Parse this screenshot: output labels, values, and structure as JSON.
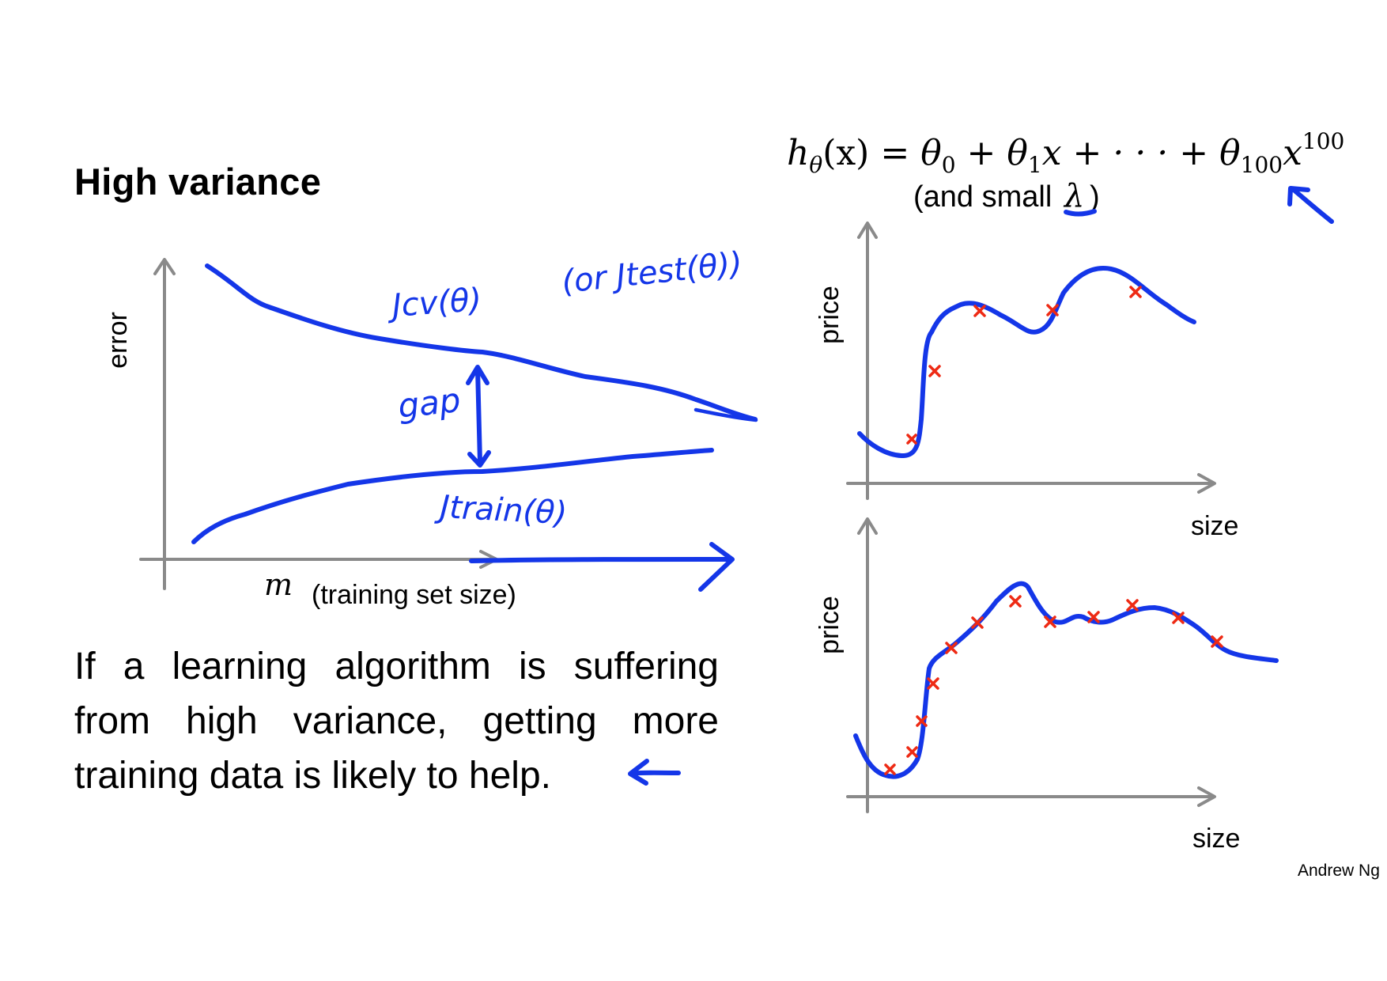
{
  "slide": {
    "title": "High variance",
    "body": "If a learning algorithm is suffering from high variance, getting more training data is likely to help.",
    "credit": "Andrew Ng"
  },
  "learning_curve": {
    "y_label": "error",
    "x_label_symbol": "m",
    "x_label": "(training set size)",
    "annotations": {
      "cv": "Jcv(θ)",
      "test": "(or Jtest(θ))",
      "train": "Jtrain(θ)",
      "gap": "gap"
    },
    "colors": {
      "ink": "#1436e8",
      "axis": "#8a8a8a"
    }
  },
  "hypothesis": {
    "formula_text": "hθ(x) = θ0 + θ1x + ··· + θ100x100",
    "parts": {
      "h": "h",
      "h_sub": "θ",
      "lhs_rest": "(x) = ",
      "t0": "θ",
      "t0_sub": "0",
      "plus1": " + ",
      "t1": "θ",
      "t1_sub": "1",
      "x1": "x + · · · + ",
      "t100": "θ",
      "t100_sub": "100",
      "x100": "x",
      "x100_sup": "100"
    },
    "note": "(and small",
    "lambda": "λ",
    "note_close": ")"
  },
  "plot_top": {
    "y_label": "price",
    "x_label": "size"
  },
  "plot_bottom": {
    "y_label": "price",
    "x_label": "size"
  },
  "colors": {
    "data_point": "#ee2a14",
    "curve": "#1436e8"
  }
}
